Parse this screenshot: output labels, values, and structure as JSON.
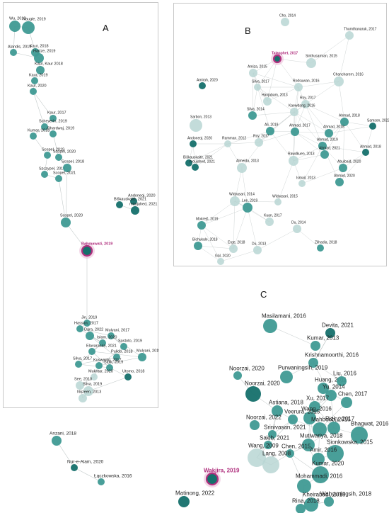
{
  "colors": {
    "dark": "#15706c",
    "mid": "#3f9a94",
    "light": "#b8d6d3",
    "highlight": "#b0307e",
    "edge": "#aab3b3"
  },
  "panels": [
    {
      "id": "A",
      "letter": "A",
      "nodes": [
        {
          "label": "Naugle, 2019",
          "shade": "mid",
          "size": 9
        },
        {
          "label": "Wu, 2018",
          "shade": "mid",
          "size": 8
        },
        {
          "label": "Alandis, 2019",
          "shade": "mid",
          "size": 5
        },
        {
          "label": "Kaur, 2018",
          "shade": "mid",
          "size": 6
        },
        {
          "label": "Hartze, 2019",
          "shade": "mid",
          "size": 7
        },
        {
          "label": "Kaur, Kaur 2018",
          "shade": "mid",
          "size": 6
        },
        {
          "label": "Kaur, 2019",
          "shade": "mid",
          "size": 5
        },
        {
          "label": "Kaur, 2020",
          "shade": "mid",
          "size": 5
        },
        {
          "label": "Kaur, 2017",
          "shade": "mid",
          "size": 5
        },
        {
          "label": "Scheverin, 2019",
          "shade": "mid",
          "size": 5
        },
        {
          "label": "Kumar, 2018",
          "shade": "mid",
          "size": 5
        },
        {
          "label": "Bhardwaj, 2019",
          "shade": "mid",
          "size": 5
        },
        {
          "label": "Scopel, 2019",
          "shade": "mid",
          "size": 5
        },
        {
          "label": "Scopel, 2020",
          "shade": "mid",
          "size": 5
        },
        {
          "label": "Szczypel, 2019",
          "shade": "mid",
          "size": 5
        },
        {
          "label": "Scopel, 2018",
          "shade": "mid",
          "size": 6
        },
        {
          "label": "Scopel, 2021",
          "shade": "mid",
          "size": 5
        },
        {
          "label": "Scopel, 2020",
          "shade": "mid",
          "size": 7
        },
        {
          "label": "Andoneqi, 2020",
          "shade": "dark",
          "size": 5
        },
        {
          "label": "Biškauskaitė, 2021",
          "shade": "dark",
          "size": 5
        },
        {
          "label": "moujahed, 2021",
          "shade": "dark",
          "size": 6
        },
        {
          "label": "Rahmawati, 2019",
          "shade": "highlight",
          "size": 7
        },
        {
          "label": "Jin, 2019",
          "shade": "mid",
          "size": 5
        },
        {
          "label": "Hassan, 2017",
          "shade": "mid",
          "size": 5
        },
        {
          "label": "Dara, 2022",
          "shade": "mid",
          "size": 6
        },
        {
          "label": "Mulyani, 2017",
          "shade": "mid",
          "size": 5
        },
        {
          "label": "Islam, 2020",
          "shade": "mid",
          "size": 5
        },
        {
          "label": "Sastoto, 2019",
          "shade": "mid",
          "size": 5
        },
        {
          "label": "Elavarasan, 2021",
          "shade": "mid",
          "size": 5
        },
        {
          "label": "Pulido, 2018",
          "shade": "mid",
          "size": 5
        },
        {
          "label": "Mulyani, 2019",
          "shade": "mid",
          "size": 6
        },
        {
          "label": "Silva, 2017",
          "shade": "mid",
          "size": 5
        },
        {
          "label": "Kuswanto, 2017",
          "shade": "mid",
          "size": 5
        },
        {
          "label": "Sidik, 2019",
          "shade": "mid",
          "size": 5
        },
        {
          "label": "Mukhtar, 2020",
          "shade": "light",
          "size": 5
        },
        {
          "label": "Utomo, 2018",
          "shade": "dark",
          "size": 5
        },
        {
          "label": "See, 2010",
          "shade": "light",
          "size": 6
        },
        {
          "label": "Silva, 2019",
          "shade": "light",
          "size": 7
        },
        {
          "label": "Nuzeen, 2013",
          "shade": "light",
          "size": 6
        },
        {
          "label": "Anzani, 2018",
          "shade": "mid",
          "size": 7
        },
        {
          "label": "Nur-e-Alam, 2020",
          "shade": "dark",
          "size": 5
        },
        {
          "label": "Łączkowska, 2016",
          "shade": "mid",
          "size": 5
        }
      ]
    },
    {
      "id": "B",
      "letter": "B",
      "nodes": [
        {
          "label": "Cho, 2014",
          "shade": "light",
          "size": 6
        },
        {
          "label": "Talapphet, 2017",
          "shade": "highlight",
          "size": 5
        },
        {
          "label": "Thurnthanaruk, 2017",
          "shade": "light",
          "size": 6
        },
        {
          "label": "Sinthusamran, 2015",
          "shade": "light",
          "size": 7
        },
        {
          "label": "Amiza, 2015",
          "shade": "light",
          "size": 6
        },
        {
          "label": "Chancharern, 2016",
          "shade": "light",
          "size": 7
        },
        {
          "label": "Amirah, 2020",
          "shade": "dark",
          "size": 5
        },
        {
          "label": "Silva, 2017",
          "shade": "light",
          "size": 5
        },
        {
          "label": "Rodsuwan, 2016",
          "shade": "light",
          "size": 6
        },
        {
          "label": "Hanjabam, 2013",
          "shade": "light",
          "size": 6
        },
        {
          "label": "Roy, 2017",
          "shade": "light",
          "size": 6
        },
        {
          "label": "Kaewdang, 2016",
          "shade": "light",
          "size": 6
        },
        {
          "label": "Silva, 2014",
          "shade": "mid",
          "size": 6
        },
        {
          "label": "Ahmad, 2018",
          "shade": "mid",
          "size": 6
        },
        {
          "label": "Samson, 2022",
          "shade": "dark",
          "size": 5
        },
        {
          "label": "Sarbon, 2013",
          "shade": "light",
          "size": 9
        },
        {
          "label": "Ali, 2019",
          "shade": "mid",
          "size": 6
        },
        {
          "label": "Ahmad, 2017",
          "shade": "mid",
          "size": 6
        },
        {
          "label": "Ahmad, 2018",
          "shade": "mid",
          "size": 6
        },
        {
          "label": "Andoneqi, 2020",
          "shade": "dark",
          "size": 5
        },
        {
          "label": "Ramman, 2012",
          "shade": "light",
          "size": 5
        },
        {
          "label": "Roy, 2017",
          "shade": "light",
          "size": 6
        },
        {
          "label": "Ahmad, 2019",
          "shade": "mid",
          "size": 6
        },
        {
          "label": "Rawdkuen, 2013",
          "shade": "light",
          "size": 7
        },
        {
          "label": "Ahmad, 2021",
          "shade": "mid",
          "size": 6
        },
        {
          "label": "Ahmad, 2018",
          "shade": "dark",
          "size": 5
        },
        {
          "label": "Biškauskaitė, 2021",
          "shade": "dark",
          "size": 5
        },
        {
          "label": "moujahed, 2021",
          "shade": "dark",
          "size": 5
        },
        {
          "label": "Almeida, 2013",
          "shade": "light",
          "size": 7
        },
        {
          "label": "Abuibaid, 2020",
          "shade": "mid",
          "size": 6
        },
        {
          "label": "Ismail, 2013",
          "shade": "light",
          "size": 5
        },
        {
          "label": "Ahmad, 2020",
          "shade": "mid",
          "size": 6
        },
        {
          "label": "Widyasari, 2014",
          "shade": "light",
          "size": 7
        },
        {
          "label": "Widyasari, 2015",
          "shade": "light",
          "size": 5
        },
        {
          "label": "Lee, 2019",
          "shade": "mid",
          "size": 7
        },
        {
          "label": "Mokrejš, 2019",
          "shade": "mid",
          "size": 6
        },
        {
          "label": "Kuan, 2017",
          "shade": "light",
          "size": 6
        },
        {
          "label": "Du, 2014",
          "shade": "light",
          "size": 6
        },
        {
          "label": "Bichukale, 2018",
          "shade": "mid",
          "size": 6
        },
        {
          "label": "Erge, 2018",
          "shade": "light",
          "size": 6
        },
        {
          "label": "Du, 2013",
          "shade": "light",
          "size": 6
        },
        {
          "label": "Zilhadia, 2018",
          "shade": "mid",
          "size": 5
        },
        {
          "label": "Gál, 2020",
          "shade": "light",
          "size": 5
        }
      ]
    },
    {
      "id": "C",
      "letter": "C",
      "nodes": [
        {
          "label": "Masilamani, 2016",
          "shade": "mid",
          "size": 10
        },
        {
          "label": "Devita, 2021",
          "shade": "dark",
          "size": 7
        },
        {
          "label": "Kumar, 2013",
          "shade": "mid",
          "size": 7
        },
        {
          "label": "Krishnamoorthi, 2016",
          "shade": "mid",
          "size": 7
        },
        {
          "label": "Noorzai, 2020",
          "shade": "mid",
          "size": 6
        },
        {
          "label": "Purwaningsih, 2019",
          "shade": "mid",
          "size": 9
        },
        {
          "label": "Huang, 2011",
          "shade": "mid",
          "size": 8
        },
        {
          "label": "Liu, 2016",
          "shade": "mid",
          "size": 7
        },
        {
          "label": "Noorzai, 2020",
          "shade": "dark",
          "size": 11
        },
        {
          "label": "Yu, 2014",
          "shade": "mid",
          "size": 8
        },
        {
          "label": "Astiana, 2018",
          "shade": "mid",
          "size": 8
        },
        {
          "label": "Xu, 2017",
          "shade": "mid",
          "size": 8
        },
        {
          "label": "Chen, 2017",
          "shade": "mid",
          "size": 8
        },
        {
          "label": "Wang, 2016",
          "shade": "mid",
          "size": 9
        },
        {
          "label": "Veerura, 2015",
          "shade": "mid",
          "size": 7
        },
        {
          "label": "Noorzai, 2022",
          "shade": "mid",
          "size": 7
        },
        {
          "label": "Mahboob, 2015",
          "shade": "mid",
          "size": 10
        },
        {
          "label": "Rizky, 2017",
          "shade": "mid",
          "size": 9
        },
        {
          "label": "Srinivasan, 2021",
          "shade": "mid",
          "size": 6
        },
        {
          "label": "Bhagwat, 2016",
          "shade": "mid",
          "size": 12
        },
        {
          "label": "Sakib, 2021",
          "shade": "mid",
          "size": 6
        },
        {
          "label": "Mutiwariya, 2018",
          "shade": "mid",
          "size": 9
        },
        {
          "label": "Sionkowska, 2015",
          "shade": "mid",
          "size": 12
        },
        {
          "label": "Chen, 2015",
          "shade": "mid",
          "size": 6
        },
        {
          "label": "Amir, 2016",
          "shade": "mid",
          "size": 9
        },
        {
          "label": "Kumar, 2020",
          "shade": "mid",
          "size": 12
        },
        {
          "label": "Wakjira, 2019",
          "shade": "highlight",
          "size": 8
        },
        {
          "label": "Mohammadi, 2016",
          "shade": "mid",
          "size": 10
        },
        {
          "label": "Wang, 2009",
          "shade": "light",
          "size": 13
        },
        {
          "label": "Lang, 2008",
          "shade": "light",
          "size": 12
        },
        {
          "label": "Kheirabadi, 2018",
          "shade": "mid",
          "size": 10
        },
        {
          "label": "Rina, 2018",
          "shade": "mid",
          "size": 7
        },
        {
          "label": "Wahyuningsih, 2018",
          "shade": "mid",
          "size": 7
        },
        {
          "label": "Matinong, 2022",
          "shade": "dark",
          "size": 8
        }
      ]
    }
  ]
}
